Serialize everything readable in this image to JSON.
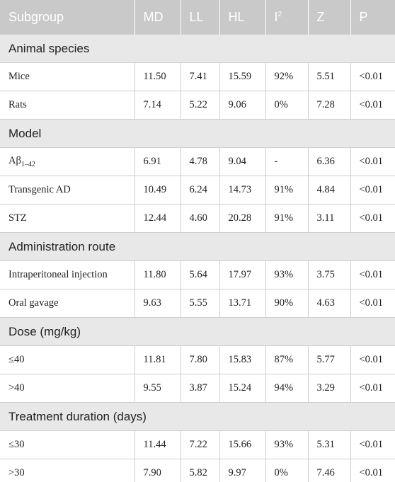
{
  "table": {
    "header": [
      "Subgroup",
      "MD",
      "LL",
      "HL",
      {
        "text": "I",
        "sup": "2"
      },
      "Z",
      "P"
    ],
    "sections": [
      {
        "title": "Animal species",
        "rows": [
          [
            "Mice",
            "11.50",
            "7.41",
            "15.59",
            "92%",
            "5.51",
            "<0.01"
          ],
          [
            "Rats",
            "7.14",
            "5.22",
            "9.06",
            "0%",
            "7.28",
            "<0.01"
          ]
        ]
      },
      {
        "title": "Model",
        "rows": [
          [
            {
              "text": "Aβ",
              "sub": "1–42"
            },
            "6.91",
            "4.78",
            "9.04",
            "-",
            "6.36",
            "<0.01"
          ],
          [
            "Transgenic AD",
            "10.49",
            "6.24",
            "14.73",
            "91%",
            "4.84",
            "<0.01"
          ],
          [
            "STZ",
            "12.44",
            "4.60",
            "20.28",
            "91%",
            "3.11",
            "<0.01"
          ]
        ]
      },
      {
        "title": "Administration route",
        "rows": [
          [
            "Intraperitoneal injection",
            "11.80",
            "5.64",
            "17.97",
            "93%",
            "3.75",
            "<0.01"
          ],
          [
            "Oral gavage",
            "9.63",
            "5.55",
            "13.71",
            "90%",
            "4.63",
            "<0.01"
          ]
        ]
      },
      {
        "title": "Dose (mg/kg)",
        "rows": [
          [
            "≤40",
            "11.81",
            "7.80",
            "15.83",
            "87%",
            "5.77",
            "<0.01"
          ],
          [
            ">40",
            "9.55",
            "3.87",
            "15.24",
            "94%",
            "3.29",
            "<0.01"
          ]
        ]
      },
      {
        "title": "Treatment duration (days)",
        "rows": [
          [
            "≤30",
            "11.44",
            "7.22",
            "15.66",
            "93%",
            "5.31",
            "<0.01"
          ],
          [
            ">30",
            "7.90",
            "5.82",
            "9.97",
            "0%",
            "7.46",
            "<0.01"
          ]
        ]
      }
    ]
  }
}
